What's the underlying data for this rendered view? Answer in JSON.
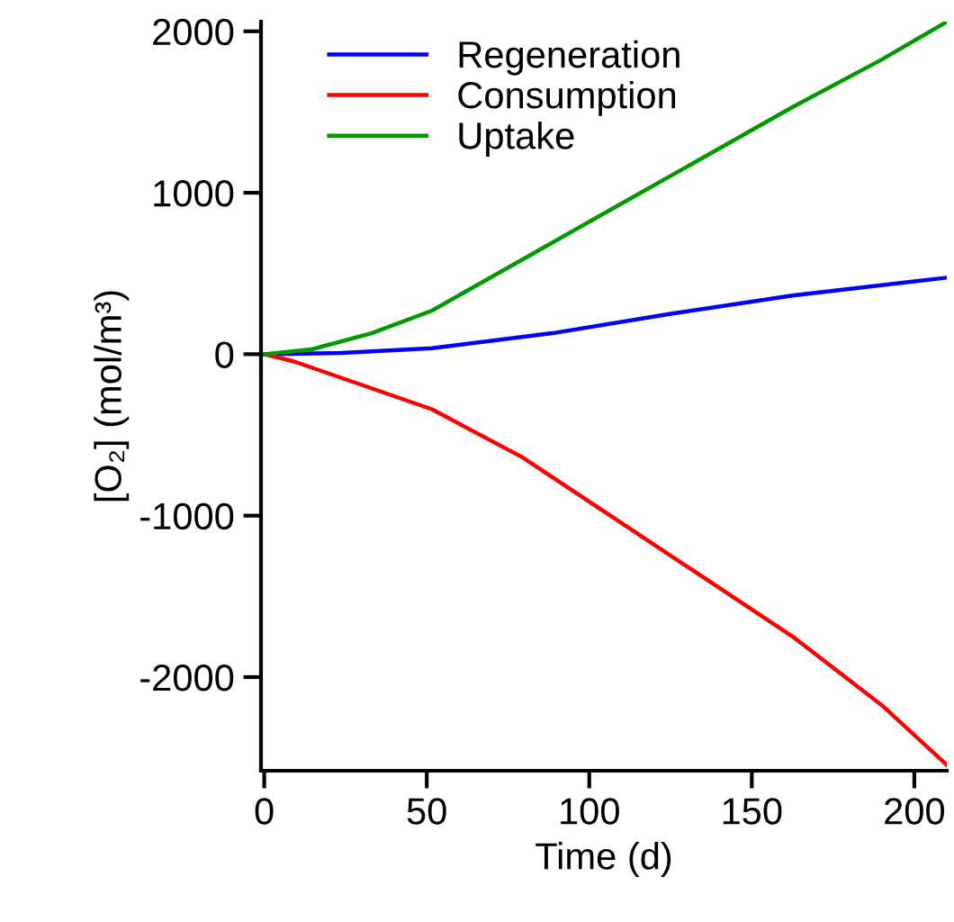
{
  "chart_data": {
    "type": "line",
    "xlabel": "Time (d)",
    "ylabel": "[O₂] (mol/m³)",
    "xlim": [
      -1,
      210
    ],
    "ylim": [
      -2580,
      2060
    ],
    "xticks": [
      0,
      50,
      100,
      150,
      200
    ],
    "yticks": [
      -2000,
      -1000,
      0,
      1000,
      2000
    ],
    "grid": false,
    "legend": "top left",
    "line_style": "solid",
    "marker": "none",
    "series": [
      {
        "name": "Regeneration",
        "color": "#0000ff",
        "x": [
          0,
          23.8,
          51.6,
          88.6,
          125.5,
          162.5,
          210
        ],
        "values": [
          0,
          8,
          37,
          130,
          252,
          363,
          474
        ]
      },
      {
        "name": "Consumption",
        "color": "#ff0000",
        "x": [
          0,
          9,
          51.6,
          79.3,
          107,
          134.8,
          162.5,
          190,
          210
        ],
        "values": [
          0,
          -44,
          -341,
          -637,
          -1007,
          -1378,
          -1748,
          -2174,
          -2544
        ]
      },
      {
        "name": "Uptake",
        "color": "#009900",
        "x": [
          0,
          14.6,
          33,
          51.6,
          79.3,
          107,
          134.8,
          162.5,
          190,
          210
        ],
        "values": [
          0,
          30,
          130,
          270,
          585,
          900,
          1215,
          1530,
          1825,
          2059
        ]
      }
    ]
  }
}
